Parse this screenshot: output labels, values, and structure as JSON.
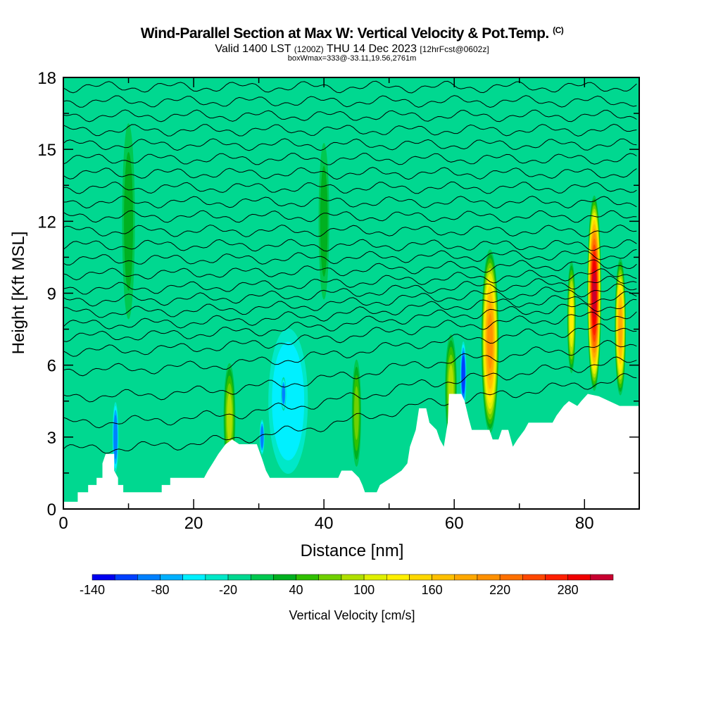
{
  "chart_data": {
    "type": "heatmap",
    "title": "Wind-Parallel Section at Max W: Vertical Velocity & Pot.Temp.",
    "title_mark": "(C)",
    "subtitle_main": "Valid 1400 LST",
    "subtitle_utc": "(1200Z)",
    "subtitle_date": "THU 14 Dec 2023",
    "subtitle_fcst": "[12hrFcst@0602z]",
    "box_info": "boxWmax=333@-33.11,19.56,2761m",
    "xlabel": "Distance [nm]",
    "ylabel": "Height [Kft MSL]",
    "xlim": [
      0,
      88.4
    ],
    "ylim": [
      0,
      18
    ],
    "xticks": [
      "0",
      "20",
      "40",
      "60",
      "80"
    ],
    "yticks": [
      "0",
      "3",
      "6",
      "9",
      "12",
      "15",
      "18"
    ],
    "background_value": -10,
    "colorbar": {
      "label": "Vertical Velocity [cm/s]",
      "min": -140,
      "step": 20,
      "tick_labels": [
        "-140",
        "-80",
        "-20",
        "40",
        "100",
        "160",
        "220",
        "280"
      ],
      "colors": [
        "#0000f0",
        "#0040ff",
        "#0080ff",
        "#00b0ff",
        "#00f0ff",
        "#00e8c8",
        "#00d890",
        "#00c850",
        "#00b020",
        "#30c000",
        "#70d000",
        "#b0e000",
        "#e0f000",
        "#fff000",
        "#ffd800",
        "#ffc000",
        "#ffa800",
        "#ff9000",
        "#ff7000",
        "#ff4800",
        "#ff2000",
        "#f00000",
        "#c80030"
      ]
    },
    "terrain": [
      [
        0,
        0.3
      ],
      [
        2.2,
        0.3
      ],
      [
        2.2,
        0.7
      ],
      [
        3.8,
        0.7
      ],
      [
        3.8,
        1.0
      ],
      [
        5.1,
        1.0
      ],
      [
        5.1,
        1.3
      ],
      [
        6.0,
        1.3
      ],
      [
        6.0,
        1.9
      ],
      [
        6.5,
        2.3
      ],
      [
        7.8,
        2.3
      ],
      [
        7.8,
        1.6
      ],
      [
        8.4,
        1.3
      ],
      [
        8.4,
        1.0
      ],
      [
        9.2,
        1.0
      ],
      [
        9.2,
        0.7
      ],
      [
        15.1,
        0.7
      ],
      [
        15.1,
        1.0
      ],
      [
        16.4,
        1.0
      ],
      [
        16.4,
        1.3
      ],
      [
        21.6,
        1.3
      ],
      [
        22.2,
        1.6
      ],
      [
        22.9,
        1.9
      ],
      [
        23.8,
        2.3
      ],
      [
        24.9,
        2.7
      ],
      [
        25.9,
        2.9
      ],
      [
        27.0,
        2.7
      ],
      [
        29.7,
        2.7
      ],
      [
        30.5,
        2.1
      ],
      [
        31.1,
        1.6
      ],
      [
        31.7,
        1.3
      ],
      [
        42.2,
        1.3
      ],
      [
        42.7,
        1.6
      ],
      [
        44.3,
        1.6
      ],
      [
        45.4,
        1.3
      ],
      [
        45.9,
        1.0
      ],
      [
        46.3,
        0.7
      ],
      [
        48.1,
        0.7
      ],
      [
        48.6,
        1.0
      ],
      [
        50.3,
        1.3
      ],
      [
        51.9,
        1.6
      ],
      [
        52.8,
        1.9
      ],
      [
        53.2,
        2.6
      ],
      [
        54.1,
        3.3
      ],
      [
        54.6,
        4.2
      ],
      [
        55.7,
        4.2
      ],
      [
        56.2,
        3.6
      ],
      [
        57.3,
        3.3
      ],
      [
        57.8,
        2.9
      ],
      [
        58.4,
        2.6
      ],
      [
        59.0,
        3.6
      ],
      [
        59.2,
        4.8
      ],
      [
        61.1,
        4.8
      ],
      [
        61.6,
        4.5
      ],
      [
        62.2,
        3.8
      ],
      [
        62.7,
        3.3
      ],
      [
        65.4,
        3.3
      ],
      [
        65.9,
        2.9
      ],
      [
        66.8,
        2.9
      ],
      [
        67.3,
        3.3
      ],
      [
        68.3,
        3.3
      ],
      [
        69.0,
        2.6
      ],
      [
        69.7,
        2.9
      ],
      [
        70.8,
        3.3
      ],
      [
        71.4,
        3.6
      ],
      [
        75.1,
        3.6
      ],
      [
        75.7,
        3.9
      ],
      [
        76.8,
        4.3
      ],
      [
        77.6,
        4.5
      ],
      [
        78.9,
        4.3
      ],
      [
        79.5,
        4.5
      ],
      [
        80.5,
        4.8
      ],
      [
        82.2,
        4.7
      ],
      [
        83.8,
        4.5
      ],
      [
        85.4,
        4.3
      ],
      [
        88.4,
        4.3
      ]
    ],
    "w_features": [
      {
        "x": 34.5,
        "y": 4.5,
        "dx": 3.5,
        "dy": 3.5,
        "peak": -60
      },
      {
        "x": 33.8,
        "y": 4.8,
        "dx": 0.4,
        "dy": 0.7,
        "peak": -100
      },
      {
        "x": 30.5,
        "y": 3.0,
        "dx": 0.4,
        "dy": 0.8,
        "peak": -100
      },
      {
        "x": 8.0,
        "y": 3.0,
        "dx": 0.5,
        "dy": 1.6,
        "peak": -100
      },
      {
        "x": 61.4,
        "y": 5.6,
        "dx": 0.5,
        "dy": 1.5,
        "peak": -120
      },
      {
        "x": 10,
        "y": 12,
        "dx": 1.2,
        "dy": 5,
        "peak": 20
      },
      {
        "x": 40,
        "y": 12,
        "dx": 1,
        "dy": 4,
        "peak": 20
      },
      {
        "x": 25.5,
        "y": 3.8,
        "dx": 1.0,
        "dy": 2.5,
        "peak": 80
      },
      {
        "x": 45.0,
        "y": 4.0,
        "dx": 0.8,
        "dy": 2.5,
        "peak": 70
      },
      {
        "x": 59.5,
        "y": 5.0,
        "dx": 1.0,
        "dy": 2.5,
        "peak": 90
      },
      {
        "x": 65.5,
        "y": 7.0,
        "dx": 1.4,
        "dy": 4.0,
        "peak": 210
      },
      {
        "x": 78.0,
        "y": 8.0,
        "dx": 0.7,
        "dy": 2.5,
        "peak": 130
      },
      {
        "x": 81.5,
        "y": 9.0,
        "dx": 1.1,
        "dy": 4.2,
        "peak": 310
      },
      {
        "x": 85.5,
        "y": 7.6,
        "dx": 0.9,
        "dy": 3.0,
        "peak": 180
      }
    ],
    "theta_contour_base_heights": [
      2.5,
      3.6,
      4.7,
      5.8,
      6.6,
      7.2,
      7.7,
      8.2,
      8.7,
      9.2,
      9.8,
      10.4,
      11.0,
      11.6,
      12.2,
      12.8,
      13.4,
      14.0,
      14.6,
      15.2,
      15.8,
      16.4,
      17.0,
      17.6
    ]
  }
}
